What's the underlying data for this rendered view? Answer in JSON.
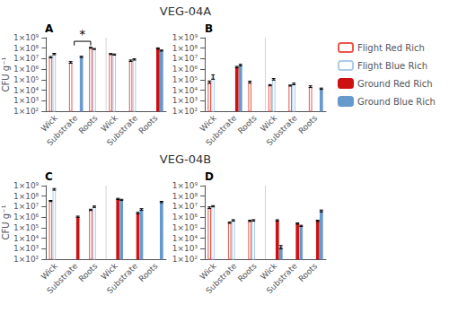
{
  "chart_data": [
    {
      "type": "bar",
      "title": "VEG-04A",
      "ylabel": "CFU g⁻¹",
      "annotations": [
        {
          "text": "A"
        },
        {
          "text": "*",
          "between": [
            {
              "category": 1,
              "series": 1
            },
            {
              "category": 2,
              "series": 0
            }
          ],
          "y": [
            180000000.0,
            450000000.0
          ]
        }
      ],
      "categories": [
        "Wick",
        "Substrate",
        "Roots",
        "Wick",
        "Substrate",
        "Roots"
      ],
      "series": [
        {
          "name": "Flight Red Rich",
          "color": "#E8574A",
          "marker": "hollow",
          "values": [
            14000000.0,
            4500000.0,
            110000000.0,
            28000000.0,
            6500000.0,
            null
          ],
          "errors": [
            2000000.0,
            800000.0,
            12000000.0,
            3000000.0,
            1000000.0,
            null
          ]
        },
        {
          "name": "Flight Blue Rich",
          "color": "#AACCE8",
          "marker": "hollow",
          "values": [
            28000000.0,
            null,
            85000000.0,
            25000000.0,
            8500000.0,
            null
          ],
          "errors": [
            4000000.0,
            null,
            8000000.0,
            3000000.0,
            1200000.0,
            null
          ]
        },
        {
          "name": "Ground Red Rich",
          "color": "#CC1111",
          "marker": "filled",
          "values": [
            null,
            null,
            null,
            null,
            null,
            95000000.0
          ],
          "errors": [
            null,
            null,
            null,
            null,
            null,
            12000000.0
          ]
        },
        {
          "name": "Ground Blue Rich",
          "color": "#6699CC",
          "marker": "filled",
          "values": [
            null,
            15000000.0,
            null,
            null,
            null,
            60000000.0
          ],
          "errors": [
            null,
            2000000.0,
            null,
            null,
            null,
            7000000.0
          ]
        }
      ],
      "log": "y",
      "ylim": [
        100,
        1000000000
      ],
      "yticks": [
        {
          "value": 100,
          "label": "1×10²"
        },
        {
          "value": 1000,
          "label": "1×10³"
        },
        {
          "value": 10000,
          "label": "1×10⁴"
        },
        {
          "value": 100000,
          "label": "1×10⁵"
        },
        {
          "value": 1000000,
          "label": "1×10⁶"
        },
        {
          "value": 10000000,
          "label": "1×10⁷"
        },
        {
          "value": 100000000,
          "label": "1×10⁸"
        },
        {
          "value": 1000000000,
          "label": "1×10⁹"
        }
      ],
      "grid": false,
      "legend": "right"
    },
    {
      "type": "bar",
      "annotations": [
        {
          "text": "B"
        }
      ],
      "categories": [
        "Wick",
        "Substrate",
        "Roots",
        "Wick",
        "Substrate",
        "Roots"
      ],
      "series": [
        {
          "name": "Flight Red Rich",
          "color": "#E8574A",
          "marker": "hollow",
          "values": [
            60000.0,
            null,
            60000.0,
            30000.0,
            28000.0,
            22000.0
          ],
          "errors": [
            15000.0,
            null,
            12000.0,
            4000.0,
            3000.0,
            4000.0
          ]
        },
        {
          "name": "Flight Blue Rich",
          "color": "#AACCE8",
          "marker": "hollow",
          "values": [
            200000.0,
            null,
            null,
            110000.0,
            40000.0,
            null
          ],
          "errors": [
            90000.0,
            null,
            null,
            18000.0,
            7000.0,
            null
          ]
        },
        {
          "name": "Ground Red Rich",
          "color": "#CC1111",
          "marker": "filled",
          "values": [
            null,
            1600000.0,
            null,
            null,
            null,
            null
          ],
          "errors": [
            null,
            250000.0,
            null,
            null,
            null,
            null
          ]
        },
        {
          "name": "Ground Blue Rich",
          "color": "#6699CC",
          "marker": "filled",
          "values": [
            null,
            2500000.0,
            null,
            null,
            null,
            14000.0
          ],
          "errors": [
            null,
            400000.0,
            null,
            null,
            null,
            2000.0
          ]
        }
      ],
      "log": "y",
      "ylim": [
        100,
        1000000000
      ],
      "yticks": [
        {
          "value": 100,
          "label": "1×10²"
        },
        {
          "value": 1000,
          "label": "1×10³"
        },
        {
          "value": 10000,
          "label": "1×10⁴"
        },
        {
          "value": 100000,
          "label": "1×10⁵"
        },
        {
          "value": 1000000,
          "label": "1×10⁶"
        },
        {
          "value": 10000000,
          "label": "1×10⁷"
        },
        {
          "value": 100000000,
          "label": "1×10⁸"
        },
        {
          "value": 1000000000,
          "label": "1×10⁹"
        }
      ],
      "grid": false
    },
    {
      "type": "bar",
      "title": "VEG-04B",
      "ylabel": "CFU g⁻¹",
      "annotations": [
        {
          "text": "C"
        }
      ],
      "categories": [
        "Wick",
        "Substrate",
        "Roots",
        "Wick",
        "Substrate",
        "Roots"
      ],
      "series": [
        {
          "name": "Flight Red Rich",
          "color": "#E8574A",
          "marker": "hollow",
          "values": [
            35000000.0,
            null,
            5000000.0,
            null,
            null,
            null
          ],
          "errors": [
            4000000.0,
            null,
            700000.0,
            null,
            null,
            null
          ]
        },
        {
          "name": "Flight Blue Rich",
          "color": "#AACCE8",
          "marker": "hollow",
          "values": [
            450000000.0,
            null,
            10000000.0,
            null,
            null,
            null
          ],
          "errors": [
            80000000.0,
            null,
            1500000.0,
            null,
            null,
            null
          ]
        },
        {
          "name": "Ground Red Rich",
          "color": "#CC1111",
          "marker": "filled",
          "values": [
            null,
            1100000.0,
            null,
            55000000.0,
            2500000.0,
            null
          ],
          "errors": [
            null,
            150000.0,
            null,
            7000000.0,
            400000.0,
            null
          ]
        },
        {
          "name": "Ground Blue Rich",
          "color": "#6699CC",
          "marker": "filled",
          "values": [
            null,
            null,
            null,
            45000000.0,
            5500000.0,
            28000000.0
          ],
          "errors": [
            null,
            null,
            null,
            5000000.0,
            900000.0,
            4000000.0
          ]
        }
      ],
      "log": "y",
      "ylim": [
        100,
        1000000000
      ],
      "yticks": [
        {
          "value": 100,
          "label": "1×10²"
        },
        {
          "value": 1000,
          "label": "1×10³"
        },
        {
          "value": 10000,
          "label": "1×10⁴"
        },
        {
          "value": 100000,
          "label": "1×10⁵"
        },
        {
          "value": 1000000,
          "label": "1×10⁶"
        },
        {
          "value": 10000000,
          "label": "1×10⁷"
        },
        {
          "value": 100000000,
          "label": "1×10⁸"
        },
        {
          "value": 1000000000,
          "label": "1×10⁹"
        }
      ],
      "grid": false
    },
    {
      "type": "bar",
      "annotations": [
        {
          "text": "D"
        }
      ],
      "categories": [
        "Wick",
        "Substrate",
        "Roots",
        "Wick",
        "Substrate",
        "Roots"
      ],
      "series": [
        {
          "name": "Flight Red Rich",
          "color": "#E8574A",
          "marker": "hollow",
          "values": [
            8000000.0,
            300000.0,
            450000.0,
            null,
            null,
            null
          ],
          "errors": [
            1500000.0,
            40000.0,
            60000.0,
            null,
            null,
            null
          ]
        },
        {
          "name": "Flight Blue Rich",
          "color": "#AACCE8",
          "marker": "hollow",
          "values": [
            11000000.0,
            500000.0,
            500000.0,
            null,
            null,
            null
          ],
          "errors": [
            1500000.0,
            80000.0,
            80000.0,
            null,
            null,
            null
          ]
        },
        {
          "name": "Ground Red Rich",
          "color": "#CC1111",
          "marker": "filled",
          "values": [
            null,
            null,
            null,
            500000.0,
            250000.0,
            450000.0
          ],
          "errors": [
            null,
            null,
            null,
            70000.0,
            30000.0,
            60000.0
          ]
        },
        {
          "name": "Ground Blue Rich",
          "color": "#6699CC",
          "marker": "filled",
          "values": [
            null,
            null,
            null,
            1500.0,
            150000.0,
            4000000.0
          ],
          "errors": [
            null,
            null,
            null,
            500.0,
            20000.0,
            800000.0
          ]
        }
      ],
      "log": "y",
      "ylim": [
        100,
        1000000000
      ],
      "yticks": [
        {
          "value": 100,
          "label": "1×10²"
        },
        {
          "value": 1000,
          "label": "1×10³"
        },
        {
          "value": 10000,
          "label": "1×10⁴"
        },
        {
          "value": 100000,
          "label": "1×10⁵"
        },
        {
          "value": 1000000,
          "label": "1×10⁶"
        },
        {
          "value": 10000000,
          "label": "1×10⁷"
        },
        {
          "value": 100000000,
          "label": "1×10⁸"
        },
        {
          "value": 1000000000,
          "label": "1×10⁹"
        }
      ],
      "grid": false
    }
  ]
}
